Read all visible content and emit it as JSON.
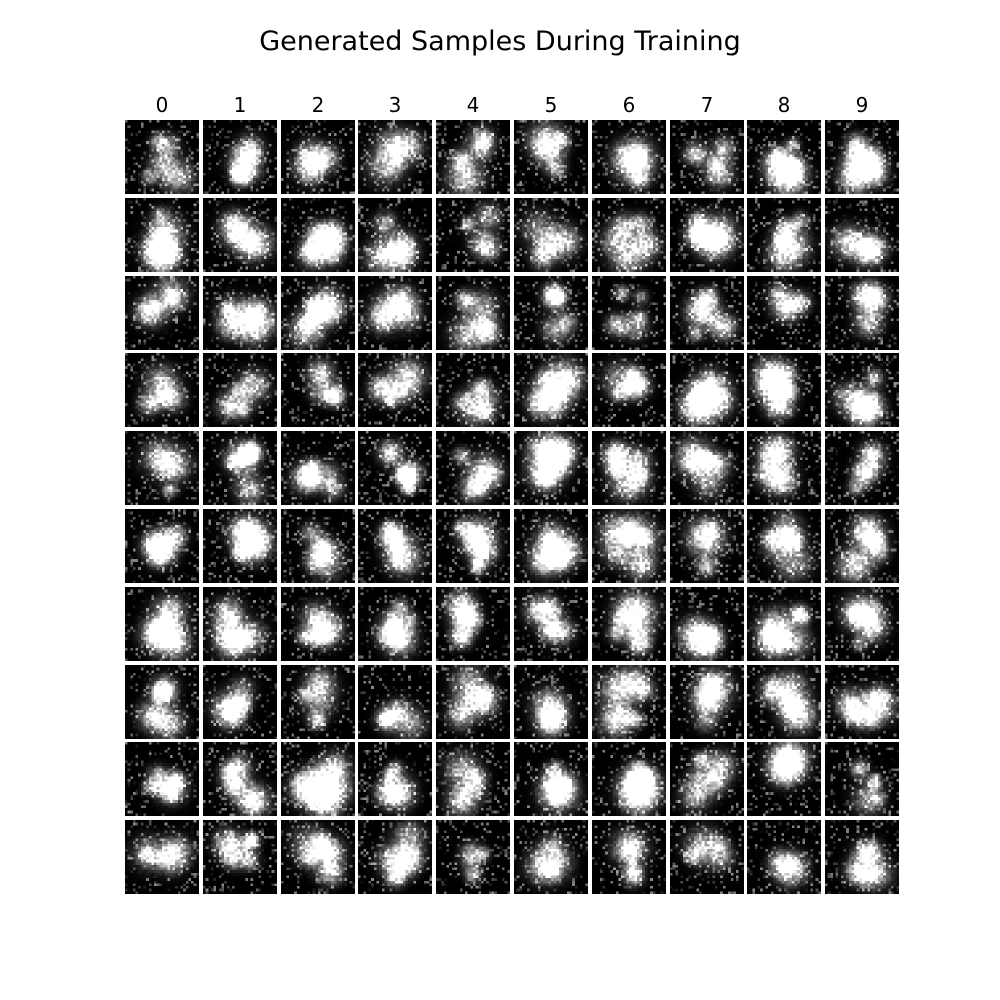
{
  "chart_data": {
    "type": "image-grid",
    "title": "Generated Samples During Training",
    "columns": [
      "0",
      "1",
      "2",
      "3",
      "4",
      "5",
      "6",
      "7",
      "8",
      "9"
    ],
    "rows": 10,
    "colormap": "gray",
    "background": "#000000",
    "grid_on": false,
    "axes_visible": false
  }
}
